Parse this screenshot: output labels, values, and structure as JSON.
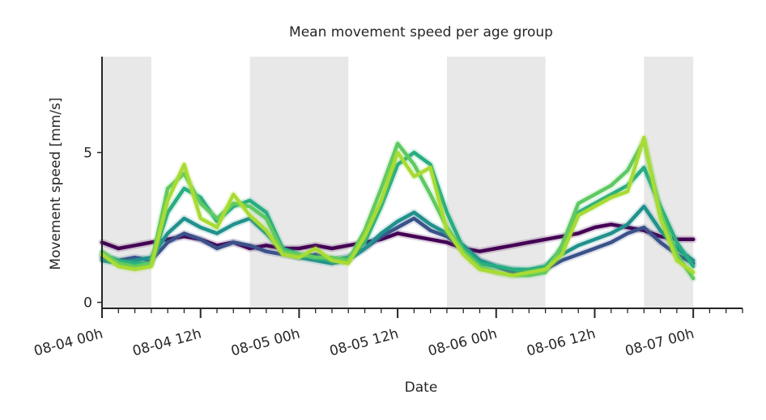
{
  "chart_data": {
    "type": "line",
    "title": "Mean movement speed per age group",
    "xlabel": "Date",
    "ylabel": "Movement speed [mm/s]",
    "x_ticks": [
      "08-04 00h",
      "08-04 12h",
      "08-05 00h",
      "08-05 12h",
      "08-06 00h",
      "08-06 12h",
      "08-07 00h"
    ],
    "x_tick_hours": [
      0,
      12,
      24,
      36,
      48,
      60,
      72
    ],
    "y_ticks": [
      "0",
      "5"
    ],
    "y_tick_values": [
      0,
      5
    ],
    "xlim_hours": [
      0,
      78
    ],
    "ylim": [
      -0.2,
      8.2
    ],
    "night_bands_hours": [
      [
        0,
        6
      ],
      [
        18,
        30
      ],
      [
        42,
        54
      ],
      [
        66,
        72
      ]
    ],
    "grid": false,
    "colors": {
      "night_band": "#e8e8e8",
      "axis": "#262626",
      "series": [
        "#440154",
        "#3b528b",
        "#21918c",
        "#27ad81",
        "#5ec962",
        "#a8db34"
      ]
    },
    "series": [
      {
        "x": [
          0,
          2,
          4,
          6,
          8,
          10,
          12,
          14,
          16,
          18,
          20,
          22,
          24,
          26,
          28,
          30,
          32,
          34,
          36,
          38,
          40,
          42,
          44,
          46,
          48,
          50,
          52,
          54,
          56,
          58,
          60,
          62,
          64,
          66,
          68,
          70,
          72
        ],
        "values": [
          2.0,
          1.8,
          1.9,
          2.0,
          2.1,
          2.2,
          2.1,
          1.9,
          2.0,
          1.8,
          1.9,
          1.8,
          1.8,
          1.9,
          1.8,
          1.9,
          2.0,
          2.1,
          2.3,
          2.2,
          2.1,
          2.0,
          1.8,
          1.7,
          1.8,
          1.9,
          2.0,
          2.1,
          2.2,
          2.3,
          2.5,
          2.6,
          2.5,
          2.4,
          2.2,
          2.1,
          2.1
        ]
      },
      {
        "x": [
          0,
          2,
          4,
          6,
          8,
          10,
          12,
          14,
          16,
          18,
          20,
          22,
          24,
          26,
          28,
          30,
          32,
          34,
          36,
          38,
          40,
          42,
          44,
          46,
          48,
          50,
          52,
          54,
          56,
          58,
          60,
          62,
          64,
          66,
          68,
          70,
          72
        ],
        "values": [
          1.5,
          1.4,
          1.5,
          1.4,
          2.0,
          2.3,
          2.1,
          1.8,
          2.0,
          1.9,
          1.7,
          1.6,
          1.5,
          1.6,
          1.4,
          1.5,
          1.8,
          2.2,
          2.5,
          2.8,
          2.4,
          2.2,
          1.8,
          1.4,
          1.2,
          1.0,
          1.0,
          1.1,
          1.4,
          1.6,
          1.8,
          2.0,
          2.3,
          2.5,
          2.0,
          1.6,
          1.3
        ]
      },
      {
        "x": [
          0,
          2,
          4,
          6,
          8,
          10,
          12,
          14,
          16,
          18,
          20,
          22,
          24,
          26,
          28,
          30,
          32,
          34,
          36,
          38,
          40,
          42,
          44,
          46,
          48,
          50,
          52,
          54,
          56,
          58,
          60,
          62,
          64,
          66,
          68,
          70,
          72
        ],
        "values": [
          1.4,
          1.3,
          1.4,
          1.5,
          2.3,
          2.8,
          2.5,
          2.3,
          2.6,
          2.8,
          2.3,
          1.7,
          1.5,
          1.4,
          1.3,
          1.4,
          1.8,
          2.3,
          2.7,
          3.0,
          2.6,
          2.3,
          1.9,
          1.4,
          1.2,
          1.1,
          1.0,
          1.2,
          1.6,
          1.9,
          2.1,
          2.3,
          2.6,
          3.2,
          2.4,
          1.8,
          1.4
        ]
      },
      {
        "x": [
          0,
          2,
          4,
          6,
          8,
          10,
          12,
          14,
          16,
          18,
          20,
          22,
          24,
          26,
          28,
          30,
          32,
          34,
          36,
          38,
          40,
          42,
          44,
          46,
          48,
          50,
          52,
          54,
          56,
          58,
          60,
          62,
          64,
          66,
          68,
          70,
          72
        ],
        "values": [
          1.6,
          1.4,
          1.3,
          1.3,
          3.0,
          3.8,
          3.5,
          2.7,
          3.2,
          3.4,
          3.0,
          1.8,
          1.6,
          1.5,
          1.4,
          1.5,
          2.0,
          3.2,
          4.6,
          5.0,
          4.6,
          3.0,
          1.8,
          1.3,
          1.2,
          1.1,
          1.1,
          1.2,
          1.8,
          3.0,
          3.3,
          3.6,
          3.9,
          4.5,
          3.2,
          2.0,
          1.2
        ]
      },
      {
        "x": [
          0,
          2,
          4,
          6,
          8,
          10,
          12,
          14,
          16,
          18,
          20,
          22,
          24,
          26,
          28,
          30,
          32,
          34,
          36,
          38,
          40,
          42,
          44,
          46,
          48,
          50,
          52,
          54,
          56,
          58,
          60,
          62,
          64,
          66,
          68,
          70,
          72
        ],
        "values": [
          1.7,
          1.3,
          1.2,
          1.3,
          3.8,
          4.3,
          3.3,
          2.8,
          3.3,
          3.2,
          2.8,
          1.7,
          1.6,
          1.5,
          1.5,
          1.4,
          2.4,
          3.8,
          5.3,
          4.6,
          3.6,
          2.5,
          1.7,
          1.2,
          1.0,
          0.9,
          0.9,
          1.0,
          1.9,
          3.3,
          3.6,
          3.9,
          4.4,
          5.4,
          3.0,
          1.6,
          0.8
        ]
      },
      {
        "x": [
          0,
          2,
          4,
          6,
          8,
          10,
          12,
          14,
          16,
          18,
          20,
          22,
          24,
          26,
          28,
          30,
          32,
          34,
          36,
          38,
          40,
          42,
          44,
          46,
          48,
          50,
          52,
          54,
          56,
          58,
          60,
          62,
          64,
          66,
          68,
          70,
          72
        ],
        "values": [
          1.6,
          1.2,
          1.1,
          1.2,
          3.4,
          4.6,
          2.8,
          2.5,
          3.6,
          2.9,
          2.4,
          1.6,
          1.5,
          1.8,
          1.4,
          1.3,
          2.2,
          3.4,
          5.0,
          4.2,
          4.5,
          2.4,
          1.6,
          1.1,
          1.0,
          0.9,
          1.0,
          1.1,
          1.6,
          2.9,
          3.2,
          3.5,
          3.7,
          5.5,
          2.8,
          1.4,
          1.0
        ]
      }
    ]
  }
}
